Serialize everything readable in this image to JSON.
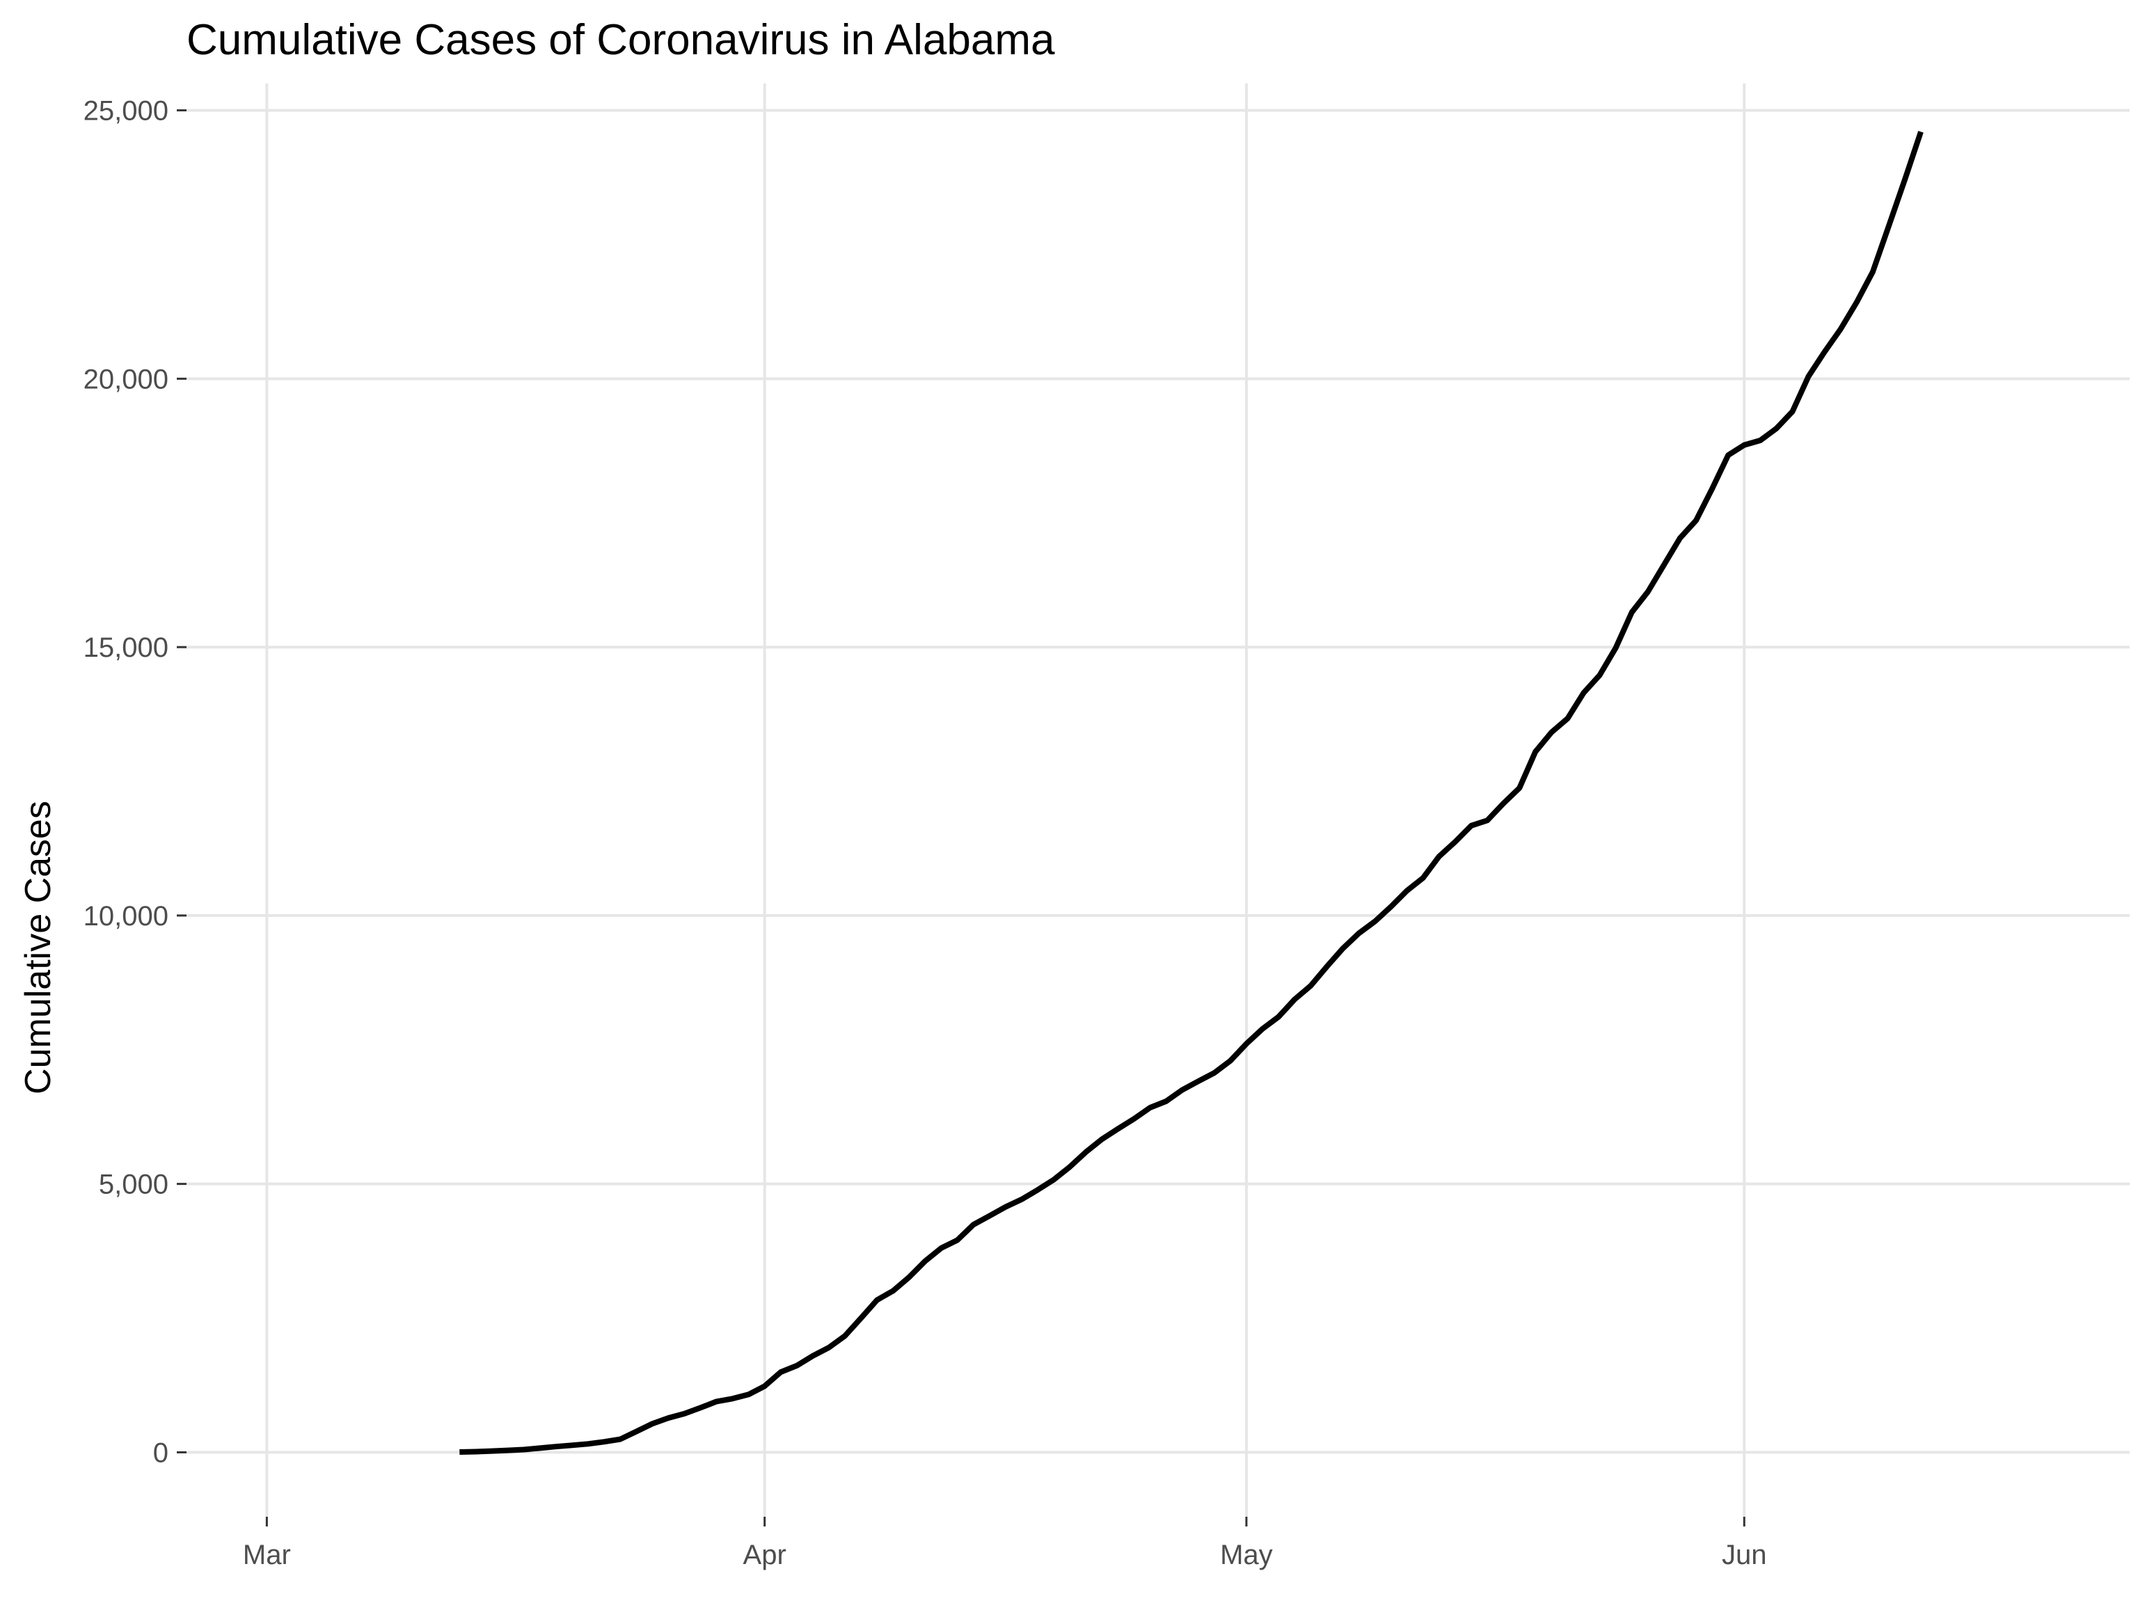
{
  "chart_data": {
    "type": "line",
    "title": "Cumulative Cases of Coronavirus in Alabama",
    "xlabel": "",
    "ylabel": "Cumulative Cases",
    "x_axis": {
      "kind": "date",
      "range": [
        "2020-02-25",
        "2020-06-25"
      ],
      "ticks": [
        {
          "date": "2020-03-01",
          "label": "Mar"
        },
        {
          "date": "2020-04-01",
          "label": "Apr"
        },
        {
          "date": "2020-05-01",
          "label": "May"
        },
        {
          "date": "2020-06-01",
          "label": "Jun"
        }
      ]
    },
    "y_axis": {
      "range": [
        -1200,
        25500
      ],
      "ticks": [
        {
          "value": 0,
          "label": "0"
        },
        {
          "value": 5000,
          "label": "5,000"
        },
        {
          "value": 10000,
          "label": "10,000"
        },
        {
          "value": 15000,
          "label": "15,000"
        },
        {
          "value": 20000,
          "label": "20,000"
        },
        {
          "value": 25000,
          "label": "25,000"
        }
      ]
    },
    "grid": true,
    "legend": "none",
    "colors": {
      "line": "#000000",
      "grid": "#e6e6e6",
      "tick_label": "#4d4d4d",
      "background": "#ffffff"
    },
    "series": [
      {
        "x": [
          "2020-03-13",
          "2020-03-14",
          "2020-03-15",
          "2020-03-16",
          "2020-03-17",
          "2020-03-18",
          "2020-03-19",
          "2020-03-20",
          "2020-03-21",
          "2020-03-22",
          "2020-03-23",
          "2020-03-24",
          "2020-03-25",
          "2020-03-26",
          "2020-03-27",
          "2020-03-28",
          "2020-03-29",
          "2020-03-30",
          "2020-03-31",
          "2020-04-01",
          "2020-04-02",
          "2020-04-03",
          "2020-04-04",
          "2020-04-05",
          "2020-04-06",
          "2020-04-07",
          "2020-04-08",
          "2020-04-09",
          "2020-04-10",
          "2020-04-11",
          "2020-04-12",
          "2020-04-13",
          "2020-04-14",
          "2020-04-15",
          "2020-04-16",
          "2020-04-17",
          "2020-04-18",
          "2020-04-19",
          "2020-04-20",
          "2020-04-21",
          "2020-04-22",
          "2020-04-23",
          "2020-04-24",
          "2020-04-25",
          "2020-04-26",
          "2020-04-27",
          "2020-04-28",
          "2020-04-29",
          "2020-04-30",
          "2020-05-01",
          "2020-05-02",
          "2020-05-03",
          "2020-05-04",
          "2020-05-05",
          "2020-05-06",
          "2020-05-07",
          "2020-05-08",
          "2020-05-09",
          "2020-05-10",
          "2020-05-11",
          "2020-05-12",
          "2020-05-13",
          "2020-05-14",
          "2020-05-15",
          "2020-05-16",
          "2020-05-17",
          "2020-05-18",
          "2020-05-19",
          "2020-05-20",
          "2020-05-21",
          "2020-05-22",
          "2020-05-23",
          "2020-05-24",
          "2020-05-25",
          "2020-05-26",
          "2020-05-27",
          "2020-05-28",
          "2020-05-29",
          "2020-05-30",
          "2020-05-31",
          "2020-06-01",
          "2020-06-02",
          "2020-06-03",
          "2020-06-04",
          "2020-06-05",
          "2020-06-06",
          "2020-06-07",
          "2020-06-08",
          "2020-06-09",
          "2020-06-10",
          "2020-06-11",
          "2020-06-12"
        ],
        "y": [
          6,
          12,
          23,
          36,
          51,
          78,
          106,
          131,
          157,
          196,
          242,
          386,
          531,
          639,
          720,
          830,
          947,
          999,
          1077,
          1233,
          1495,
          1614,
          1796,
          1952,
          2169,
          2499,
          2838,
          3008,
          3262,
          3563,
          3805,
          3953,
          4241,
          4404,
          4572,
          4712,
          4888,
          5079,
          5317,
          5593,
          5832,
          6026,
          6213,
          6421,
          6539,
          6750,
          6912,
          7068,
          7294,
          7611,
          7888,
          8112,
          8437,
          8691,
          9046,
          9385,
          9668,
          9889,
          10164,
          10464,
          10700,
          11101,
          11373,
          11674,
          11771,
          12086,
          12376,
          13052,
          13414,
          13670,
          14149,
          14478,
          14986,
          15650,
          16032,
          16530,
          17031,
          17359,
          17952,
          18575,
          18766,
          18851,
          19072,
          19387,
          20043,
          20500,
          20925,
          21422,
          21989,
          22845,
          23710,
          24601
        ]
      }
    ]
  }
}
